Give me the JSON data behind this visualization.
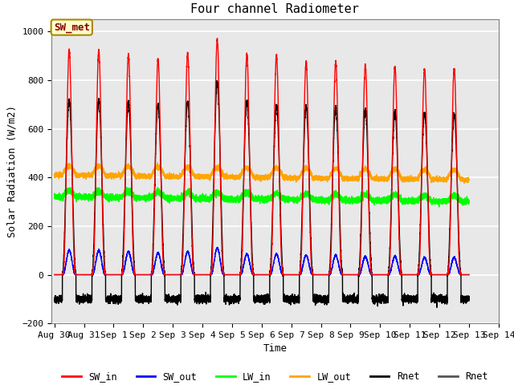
{
  "title": "Four channel Radiometer",
  "xlabel": "Time",
  "ylabel": "Solar Radiation (W/m2)",
  "ylim": [
    -200,
    1050
  ],
  "xlim_start": -0.1,
  "xlim_end": 14.5,
  "background_color": "#e8e8e8",
  "grid_color": "white",
  "annotation_text": "SW_met",
  "annotation_bg": "#ffffcc",
  "annotation_edge": "#aa8800",
  "annotation_text_color": "#880000",
  "tick_labels": [
    "Aug 30",
    "Aug 31",
    "Sep 1",
    "Sep 2",
    "Sep 3",
    "Sep 4",
    "Sep 5",
    "Sep 6",
    "Sep 7",
    "Sep 8",
    "Sep 9",
    "Sep 10",
    "Sep 11",
    "Sep 12",
    "Sep 13",
    "Sep 14"
  ],
  "sw_in_peaks": [
    925,
    925,
    905,
    885,
    910,
    965,
    905,
    900,
    875,
    875,
    860,
    855,
    845,
    845
  ],
  "sw_out_peaks": [
    100,
    100,
    95,
    90,
    95,
    110,
    85,
    85,
    80,
    80,
    75,
    75,
    70,
    70
  ],
  "lw_in_base": 320,
  "lw_in_range": [
    305,
    390
  ],
  "lw_out_base": 410,
  "lw_out_range": [
    380,
    460
  ],
  "rnet_peaks": [
    720,
    720,
    710,
    700,
    710,
    790,
    715,
    695,
    690,
    690,
    680,
    670,
    665,
    660
  ],
  "rnet_night": -100,
  "num_days": 14,
  "rise": 0.27,
  "set_": 0.73
}
